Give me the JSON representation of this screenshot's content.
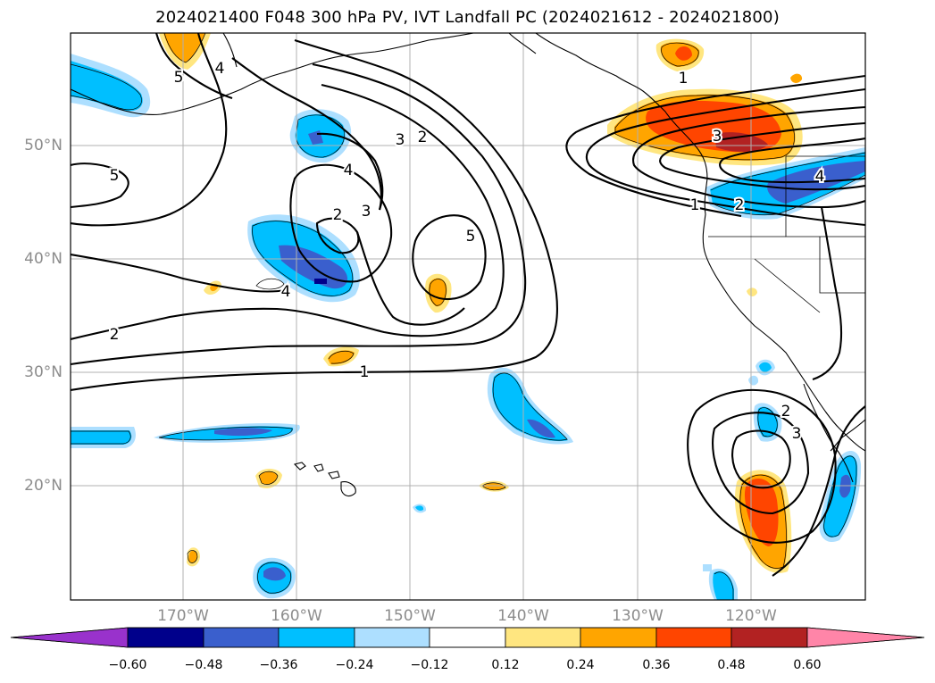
{
  "title": "2024021400 F048 300 hPa PV, IVT Landfall PC (2024021612 - 2024021800)",
  "lat_labels": [
    "50°N",
    "40°N",
    "30°N",
    "20°N"
  ],
  "lon_labels": [
    "170°W",
    "160°W",
    "150°W",
    "140°W",
    "130°W",
    "120°W"
  ],
  "contour_labels": [
    "5",
    "4",
    "3",
    "2",
    "4",
    "2",
    "3",
    "5",
    "2",
    "4",
    "5",
    "2",
    "1",
    "1",
    "3",
    "2",
    "1",
    "4",
    "2",
    "3"
  ],
  "colorbar": {
    "ticks": [
      "−0.60",
      "−0.48",
      "−0.36",
      "−0.24",
      "−0.12",
      "0.12",
      "0.24",
      "0.36",
      "0.48",
      "0.60"
    ],
    "colors": [
      "#9932CC",
      "#00008B",
      "#3A5FCD",
      "#00BFFF",
      "#ADDFFF",
      "#FFFFFF",
      "#FFE680",
      "#FFA500",
      "#FF4500",
      "#B22222",
      "#FF85A8"
    ]
  }
}
